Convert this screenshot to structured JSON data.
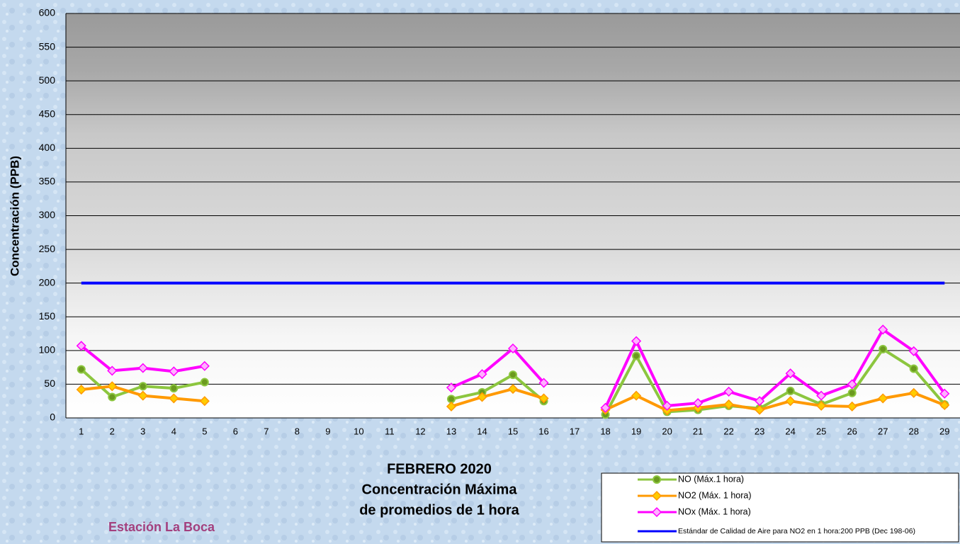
{
  "chart_data": {
    "type": "line",
    "title": [
      "FEBRERO 2020",
      "Concentración Máxima",
      "de promedios de 1 hora"
    ],
    "annotation": "Estación La Boca",
    "y_label": "Concentración  (PPB)",
    "categories": [
      "1",
      "2",
      "3",
      "4",
      "5",
      "6",
      "7",
      "8",
      "9",
      "10",
      "11",
      "12",
      "13",
      "14",
      "15",
      "16",
      "17",
      "18",
      "19",
      "20",
      "21",
      "22",
      "23",
      "24",
      "25",
      "26",
      "27",
      "28",
      "29"
    ],
    "ylim": [
      0,
      600
    ],
    "yticks": [
      0,
      50,
      100,
      150,
      200,
      250,
      300,
      350,
      400,
      450,
      500,
      550,
      600
    ],
    "grid": true,
    "series": [
      {
        "name": "NO (Máx.1 hora)",
        "color": "#8cc63f",
        "marker": "circle",
        "values": [
          72,
          31,
          47,
          44,
          53,
          null,
          null,
          null,
          null,
          null,
          null,
          null,
          28,
          38,
          64,
          25,
          null,
          5,
          92,
          9,
          12,
          18,
          14,
          40,
          20,
          37,
          102,
          73,
          20
        ]
      },
      {
        "name": "NO2 (Máx. 1 hora)",
        "color": "#ff9900",
        "marker": "diamond",
        "values": [
          42,
          47,
          33,
          29,
          25,
          null,
          null,
          null,
          null,
          null,
          null,
          null,
          17,
          31,
          43,
          29,
          null,
          12,
          33,
          11,
          15,
          20,
          12,
          25,
          18,
          17,
          29,
          37,
          19
        ]
      },
      {
        "name": "NOx (Máx. 1 hora)",
        "color": "#ff00ff",
        "marker": "diamond",
        "values": [
          107,
          70,
          74,
          69,
          77,
          null,
          null,
          null,
          null,
          null,
          null,
          null,
          45,
          65,
          103,
          52,
          null,
          15,
          114,
          18,
          22,
          39,
          25,
          66,
          33,
          50,
          131,
          99,
          36
        ]
      },
      {
        "name": "Estándar de Calidad de Aire para NO2 en 1 hora:200 PPB (Dec 198-06)",
        "color": "#0000ff",
        "marker": "none",
        "values": [
          200,
          200,
          200,
          200,
          200,
          200,
          200,
          200,
          200,
          200,
          200,
          200,
          200,
          200,
          200,
          200,
          200,
          200,
          200,
          200,
          200,
          200,
          200,
          200,
          200,
          200,
          200,
          200,
          200
        ]
      }
    ]
  }
}
